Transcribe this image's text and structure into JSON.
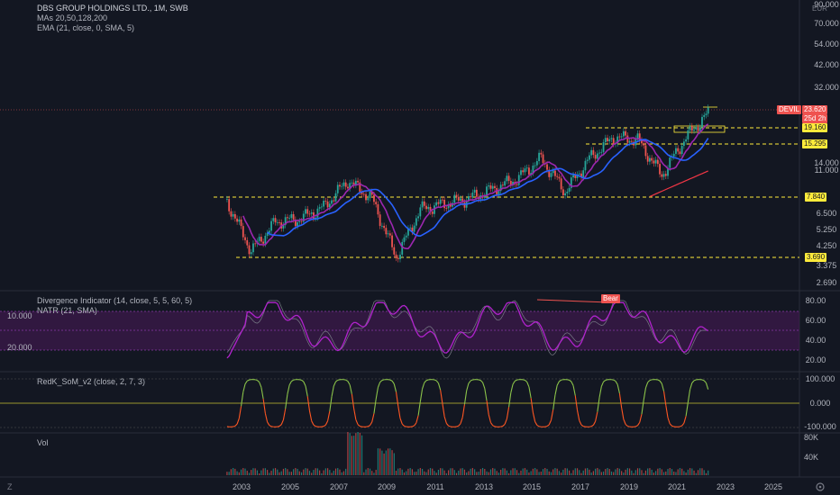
{
  "header": {
    "title": "DBS GROUP HOLDINGS LTD., 1M, SWB",
    "mas": "MAs 20,50,128,200",
    "ema": "EMA (21, close, 0, SMA, 5)",
    "currency": "EUR"
  },
  "price_axis": {
    "ticks": [
      "90.000",
      "70.000",
      "54.000",
      "42.000",
      "32.000",
      "19.160",
      "14.000",
      "11.000",
      "6.500",
      "5.250",
      "4.250",
      "3.375",
      "2.690"
    ]
  },
  "levels": {
    "devil": "DEVIL",
    "last": "23.620",
    "countdown": "25d 2h",
    "r1": "19.160",
    "r2": "15.295",
    "r3": "7.840",
    "r4": "3.690"
  },
  "divergence": {
    "title": "Divergence Indicator (14, close, 5, 5, 60, 5)",
    "natr": "NATR (21, SMA)",
    "left_ticks": [
      "10.000",
      "20.000"
    ],
    "right_ticks": [
      "80.00",
      "60.00",
      "40.00",
      "20.00"
    ],
    "bear_label": "Bear"
  },
  "som": {
    "title": "RedK_SoM_v2 (close, 2, 7, 3)",
    "ticks": [
      "100.000",
      "0.000",
      "-100.000"
    ]
  },
  "volume": {
    "title": "Vol",
    "ticks": [
      "80K",
      "40K"
    ]
  },
  "time_axis": {
    "years": [
      "2003",
      "2005",
      "2007",
      "2009",
      "2011",
      "2013",
      "2015",
      "2017",
      "2019",
      "2021",
      "2023",
      "2025"
    ]
  },
  "chart_data": {
    "type": "line",
    "symbol": "DBS GROUP HOLDINGS LTD.",
    "interval": "1M",
    "x": [
      2002,
      2003,
      2004,
      2005,
      2006,
      2007,
      2008,
      2009,
      2010,
      2011,
      2012,
      2013,
      2014,
      2015,
      2016,
      2017,
      2018,
      2019,
      2020,
      2021,
      2022
    ],
    "series": [
      {
        "values": [
          7.5,
          4.0,
          5.8,
          6.0,
          7.0,
          9.8,
          7.8,
          3.7,
          6.8,
          7.3,
          7.8,
          8.8,
          10.0,
          13.0,
          8.5,
          13.0,
          17.0,
          16.5,
          10.5,
          17.0,
          23.62
        ]
      }
    ],
    "ylim": [
      2.69,
      90
    ],
    "grid": false
  },
  "colors": {
    "background": "#131722",
    "up": "#26a69a",
    "down": "#ef5350",
    "ma_blue": "#2962ff",
    "ma_purple": "#9c27b0",
    "ma_red": "#f23645",
    "level": "#ffeb3b",
    "divergence": "#b023cc",
    "som_green": "#8bc34a",
    "som_red": "#ff5722"
  }
}
